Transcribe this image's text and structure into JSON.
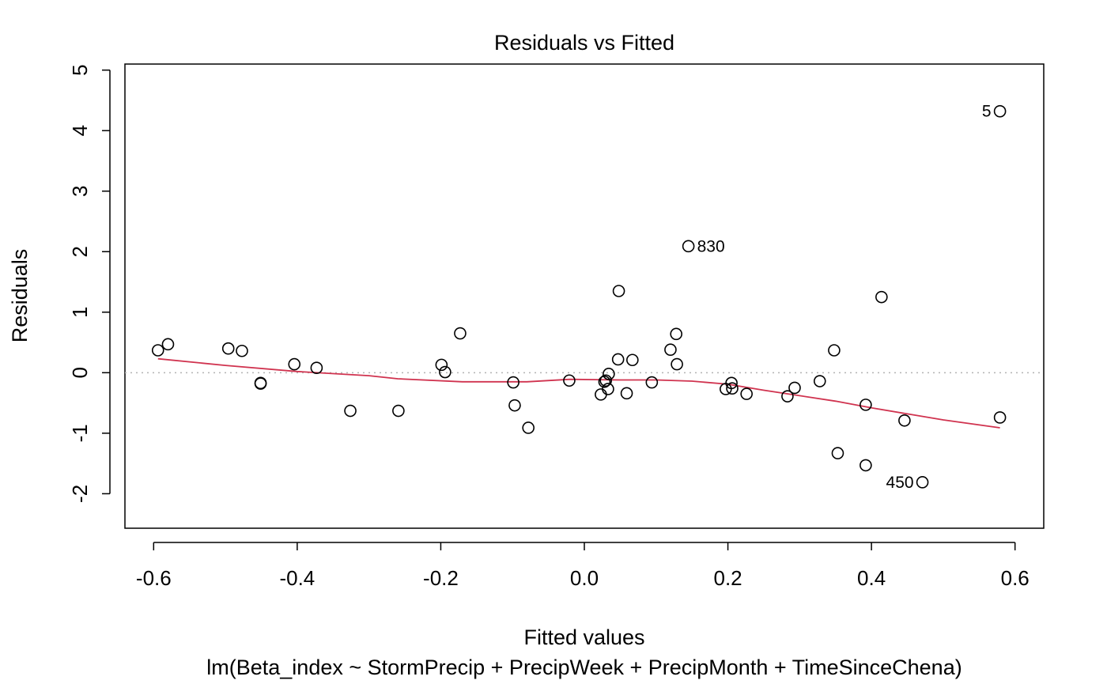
{
  "chart_data": {
    "type": "scatter",
    "title": "Residuals vs Fitted",
    "xlabel": "Fitted values",
    "ylabel": "Residuals",
    "subtitle": "lm(Beta_index ~ StormPrecip + PrecipWeek + PrecipMonth + TimeSinceChena)",
    "xlim": [
      -0.64,
      0.64
    ],
    "ylim": [
      -2.57,
      5.1
    ],
    "x_ticks": [
      -0.6,
      -0.4,
      -0.2,
      0.0,
      0.2,
      0.4,
      0.6
    ],
    "x_tick_labels": [
      "-0.6",
      "-0.4",
      "-0.2",
      "0.0",
      "0.2",
      "0.4",
      "0.6"
    ],
    "y_ticks": [
      -2,
      -1,
      0,
      1,
      2,
      3,
      4,
      5
    ],
    "y_tick_labels": [
      "-2",
      "-1",
      "0",
      "1",
      "2",
      "3",
      "4",
      "5"
    ],
    "grid": false,
    "reference_line": {
      "y": 0,
      "style": "dotted",
      "color": "#b3b3b3"
    },
    "point_color": "#000000",
    "smooth_color": "#d0334f",
    "points": [
      {
        "x": -0.594,
        "y": 0.37
      },
      {
        "x": -0.58,
        "y": 0.47
      },
      {
        "x": -0.496,
        "y": 0.4
      },
      {
        "x": -0.477,
        "y": 0.36
      },
      {
        "x": -0.451,
        "y": -0.17
      },
      {
        "x": -0.451,
        "y": -0.18
      },
      {
        "x": -0.404,
        "y": 0.14
      },
      {
        "x": -0.373,
        "y": 0.08
      },
      {
        "x": -0.326,
        "y": -0.63
      },
      {
        "x": -0.259,
        "y": -0.63
      },
      {
        "x": -0.199,
        "y": 0.13
      },
      {
        "x": -0.194,
        "y": 0.01
      },
      {
        "x": -0.173,
        "y": 0.65
      },
      {
        "x": -0.099,
        "y": -0.16
      },
      {
        "x": -0.097,
        "y": -0.54
      },
      {
        "x": -0.078,
        "y": -0.91
      },
      {
        "x": -0.021,
        "y": -0.13
      },
      {
        "x": 0.023,
        "y": -0.36
      },
      {
        "x": 0.028,
        "y": -0.15
      },
      {
        "x": 0.03,
        "y": -0.13
      },
      {
        "x": 0.033,
        "y": -0.27
      },
      {
        "x": 0.034,
        "y": -0.02
      },
      {
        "x": 0.047,
        "y": 0.22
      },
      {
        "x": 0.048,
        "y": 1.35
      },
      {
        "x": 0.059,
        "y": -0.34
      },
      {
        "x": 0.067,
        "y": 0.21
      },
      {
        "x": 0.094,
        "y": -0.16
      },
      {
        "x": 0.12,
        "y": 0.38
      },
      {
        "x": 0.128,
        "y": 0.64
      },
      {
        "x": 0.129,
        "y": 0.14
      },
      {
        "x": 0.145,
        "y": 2.09
      },
      {
        "x": 0.197,
        "y": -0.27
      },
      {
        "x": 0.205,
        "y": -0.17
      },
      {
        "x": 0.206,
        "y": -0.26
      },
      {
        "x": 0.226,
        "y": -0.35
      },
      {
        "x": 0.283,
        "y": -0.39
      },
      {
        "x": 0.293,
        "y": -0.25
      },
      {
        "x": 0.328,
        "y": -0.14
      },
      {
        "x": 0.348,
        "y": 0.37
      },
      {
        "x": 0.353,
        "y": -1.33
      },
      {
        "x": 0.392,
        "y": -1.53
      },
      {
        "x": 0.392,
        "y": -0.53
      },
      {
        "x": 0.414,
        "y": 1.25
      },
      {
        "x": 0.446,
        "y": -0.79
      },
      {
        "x": 0.471,
        "y": -1.81
      },
      {
        "x": 0.579,
        "y": -0.74
      },
      {
        "x": 0.579,
        "y": 4.32
      }
    ],
    "labeled_points": [
      {
        "label": "5",
        "x": 0.579,
        "y": 4.32,
        "side": "left"
      },
      {
        "label": "830",
        "x": 0.145,
        "y": 2.09,
        "side": "right"
      },
      {
        "label": "450",
        "x": 0.471,
        "y": -1.81,
        "side": "left"
      }
    ],
    "smooth_line": [
      {
        "x": -0.594,
        "y": 0.23
      },
      {
        "x": -0.5,
        "y": 0.12
      },
      {
        "x": -0.4,
        "y": 0.02
      },
      {
        "x": -0.3,
        "y": -0.05
      },
      {
        "x": -0.26,
        "y": -0.1
      },
      {
        "x": -0.17,
        "y": -0.15
      },
      {
        "x": -0.08,
        "y": -0.15
      },
      {
        "x": -0.02,
        "y": -0.11
      },
      {
        "x": 0.05,
        "y": -0.12
      },
      {
        "x": 0.1,
        "y": -0.12
      },
      {
        "x": 0.15,
        "y": -0.14
      },
      {
        "x": 0.2,
        "y": -0.19
      },
      {
        "x": 0.25,
        "y": -0.29
      },
      {
        "x": 0.3,
        "y": -0.38
      },
      {
        "x": 0.35,
        "y": -0.47
      },
      {
        "x": 0.4,
        "y": -0.58
      },
      {
        "x": 0.45,
        "y": -0.68
      },
      {
        "x": 0.5,
        "y": -0.78
      },
      {
        "x": 0.579,
        "y": -0.91
      }
    ]
  }
}
